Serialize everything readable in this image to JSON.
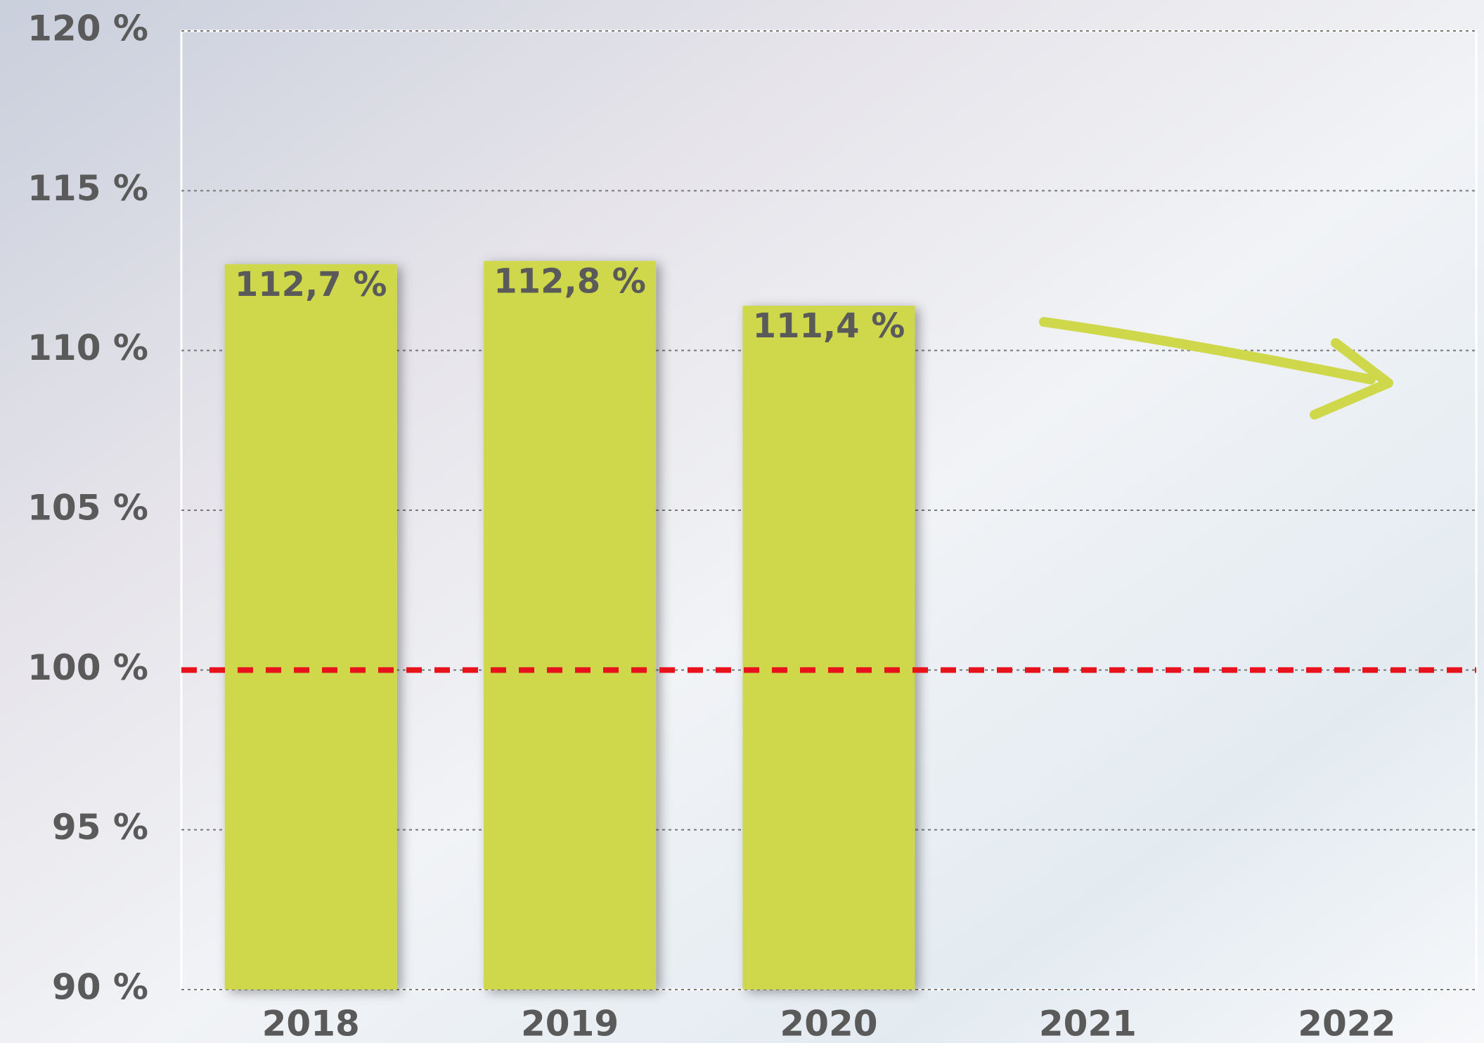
{
  "chart_data": {
    "type": "bar",
    "categories": [
      "2018",
      "2019",
      "2020",
      "2021",
      "2022"
    ],
    "values": [
      112.7,
      112.8,
      111.4,
      null,
      null
    ],
    "value_labels": [
      "112,7 %",
      "112,8 %",
      "111,4 %",
      null,
      null
    ],
    "color": "#cfd84b",
    "ylim": [
      90,
      120
    ],
    "yticks": [
      {
        "value": 90,
        "label": "90 %"
      },
      {
        "value": 95,
        "label": "95 %"
      },
      {
        "value": 100,
        "label": "100 %"
      },
      {
        "value": 105,
        "label": "105 %"
      },
      {
        "value": 110,
        "label": "110 %"
      },
      {
        "value": 115,
        "label": "115 %"
      },
      {
        "value": 120,
        "label": "120 %"
      }
    ],
    "grid": true,
    "reference_line": {
      "value": 100,
      "color": "#e8121c"
    }
  }
}
